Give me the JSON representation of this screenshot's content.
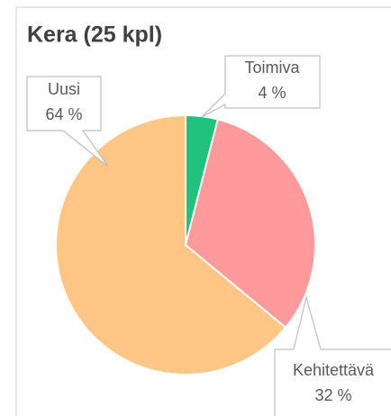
{
  "chart_data": {
    "type": "pie",
    "title": "Kera (25 kpl)",
    "categories": [
      "Toimiva",
      "Kehitettävä",
      "Uusi"
    ],
    "values": [
      4,
      32,
      64
    ],
    "value_labels": [
      "4 %",
      "32 %",
      "64 %"
    ],
    "colors": [
      "#21c27d",
      "#ff9a9c",
      "#ffc685"
    ]
  }
}
